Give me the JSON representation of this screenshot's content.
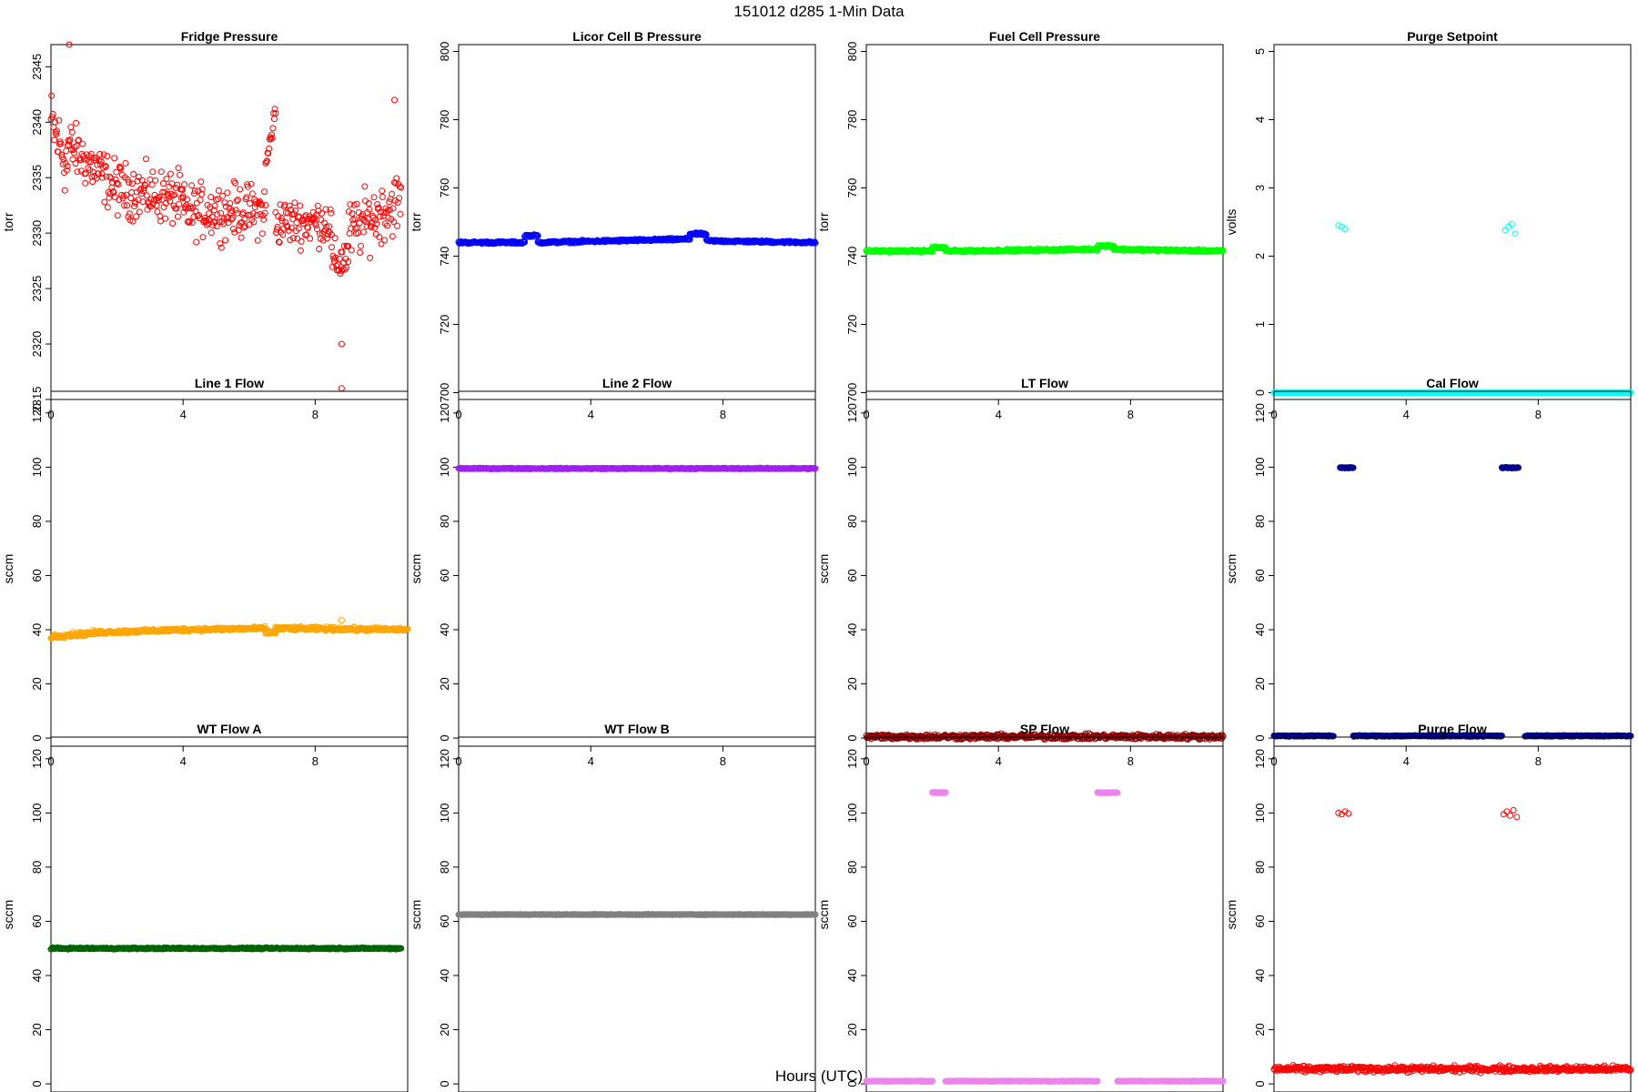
{
  "figure": {
    "title": "151012   d285   1-Min Data",
    "xlabel": "Hours (UTC)"
  },
  "chart_data": [
    {
      "type": "scatter",
      "title": "Fridge Pressure",
      "ylabel": "torr",
      "color": "#ff0000",
      "xlim": [
        0,
        10.8
      ],
      "ylim": [
        2315,
        2347
      ],
      "xticks": [
        0,
        4,
        8
      ],
      "yticks": [
        2315,
        2320,
        2325,
        2330,
        2335,
        2340,
        2345
      ],
      "segments": [
        {
          "x": [
            0.0,
            0.5
          ],
          "y": [
            2340,
            2336
          ],
          "jitter": 4.5,
          "step": 0.02
        },
        {
          "x": [
            0.5,
            2.0
          ],
          "y": [
            2338,
            2334
          ],
          "jitter": 3.5,
          "step": 0.02
        },
        {
          "x": [
            2.0,
            4.0
          ],
          "y": [
            2334,
            2333
          ],
          "jitter": 3.5,
          "step": 0.02
        },
        {
          "x": [
            4.0,
            6.5
          ],
          "y": [
            2332,
            2332
          ],
          "jitter": 3.5,
          "step": 0.02
        },
        {
          "x": [
            6.5,
            6.8
          ],
          "y": [
            2336,
            2341
          ],
          "jitter": 1.5,
          "step": 0.02
        },
        {
          "x": [
            6.8,
            8.5
          ],
          "y": [
            2331,
            2331
          ],
          "jitter": 3.0,
          "step": 0.02
        },
        {
          "x": [
            8.5,
            9.0
          ],
          "y": [
            2327,
            2328
          ],
          "jitter": 3.0,
          "step": 0.02
        },
        {
          "x": [
            9.0,
            10.6
          ],
          "y": [
            2330,
            2333
          ],
          "jitter": 4.0,
          "step": 0.02
        }
      ],
      "points": [
        {
          "x": [
            0.55
          ],
          "y": [
            2347
          ]
        },
        {
          "x": [
            8.8
          ],
          "y": [
            2316
          ]
        },
        {
          "x": [
            8.8
          ],
          "y": [
            2320
          ]
        },
        {
          "x": [
            10.4
          ],
          "y": [
            2342
          ]
        }
      ]
    },
    {
      "type": "scatter",
      "title": "Licor Cell B Pressure",
      "ylabel": "torr",
      "color": "#0000ff",
      "xlim": [
        0,
        10.8
      ],
      "ylim": [
        698,
        802
      ],
      "xticks": [
        0,
        4,
        8
      ],
      "yticks": [
        700,
        720,
        740,
        760,
        780,
        800
      ],
      "segments": [
        {
          "x": [
            0.0,
            2.0
          ],
          "y": [
            744,
            744
          ],
          "jitter": 0.5,
          "step": 0.02
        },
        {
          "x": [
            2.0,
            2.4
          ],
          "y": [
            746,
            746
          ],
          "jitter": 0.5,
          "step": 0.02
        },
        {
          "x": [
            2.4,
            7.0
          ],
          "y": [
            744,
            745
          ],
          "jitter": 0.5,
          "step": 0.02
        },
        {
          "x": [
            7.0,
            7.5
          ],
          "y": [
            746.5,
            746.5
          ],
          "jitter": 0.5,
          "step": 0.02
        },
        {
          "x": [
            7.5,
            10.8
          ],
          "y": [
            744.5,
            744
          ],
          "jitter": 0.5,
          "step": 0.02
        }
      ]
    },
    {
      "type": "scatter",
      "title": "Fuel Cell Pressure",
      "ylabel": "torr",
      "color": "#00ff00",
      "xlim": [
        0,
        10.8
      ],
      "ylim": [
        698,
        802
      ],
      "xticks": [
        0,
        4,
        8
      ],
      "yticks": [
        700,
        720,
        740,
        760,
        780,
        800
      ],
      "segments": [
        {
          "x": [
            0.0,
            2.0
          ],
          "y": [
            741.5,
            741.5
          ],
          "jitter": 0.5,
          "step": 0.02
        },
        {
          "x": [
            2.0,
            2.4
          ],
          "y": [
            742.5,
            742.5
          ],
          "jitter": 0.5,
          "step": 0.02
        },
        {
          "x": [
            2.4,
            7.0
          ],
          "y": [
            741.5,
            742
          ],
          "jitter": 0.5,
          "step": 0.02
        },
        {
          "x": [
            7.0,
            7.5
          ],
          "y": [
            743,
            743
          ],
          "jitter": 0.5,
          "step": 0.02
        },
        {
          "x": [
            7.5,
            10.8
          ],
          "y": [
            742,
            741.5
          ],
          "jitter": 0.5,
          "step": 0.02
        }
      ]
    },
    {
      "type": "scatter",
      "title": "Purge Setpoint",
      "ylabel": "volts",
      "color": "#00ffff",
      "xlim": [
        0,
        10.8
      ],
      "ylim": [
        -0.1,
        5.1
      ],
      "xticks": [
        0,
        4,
        8
      ],
      "yticks": [
        0,
        1,
        2,
        3,
        4,
        5
      ],
      "segments": [
        {
          "x": [
            0.0,
            10.8
          ],
          "y": [
            0,
            0
          ],
          "jitter": 0.0,
          "step": 0.02
        }
      ],
      "points": [
        {
          "x": [
            1.95,
            2.05,
            2.15
          ],
          "y": [
            2.45,
            2.43,
            2.4
          ]
        },
        {
          "x": [
            7.0,
            7.1,
            7.2,
            7.3
          ],
          "y": [
            2.38,
            2.43,
            2.47,
            2.33
          ]
        }
      ]
    },
    {
      "type": "scatter",
      "title": "Line 1 Flow",
      "ylabel": "sccm",
      "color": "#ffa500",
      "xlim": [
        0,
        10.8
      ],
      "ylim": [
        -3,
        128
      ],
      "xticks": [
        0,
        4,
        8
      ],
      "yticks": [
        0,
        20,
        40,
        60,
        80,
        100,
        120
      ],
      "segments": [
        {
          "x": [
            0.0,
            1.5
          ],
          "y": [
            37.5,
            39
          ],
          "jitter": 1.2,
          "step": 0.02
        },
        {
          "x": [
            1.5,
            4.0
          ],
          "y": [
            39,
            40
          ],
          "jitter": 0.9,
          "step": 0.02
        },
        {
          "x": [
            4.0,
            6.5
          ],
          "y": [
            40,
            40.5
          ],
          "jitter": 0.9,
          "step": 0.02
        },
        {
          "x": [
            6.5,
            6.8
          ],
          "y": [
            39,
            39
          ],
          "jitter": 0.9,
          "step": 0.02
        },
        {
          "x": [
            6.8,
            10.8
          ],
          "y": [
            40.5,
            40
          ],
          "jitter": 1.0,
          "step": 0.02
        }
      ],
      "points": [
        {
          "x": [
            8.8
          ],
          "y": [
            43.5
          ]
        }
      ]
    },
    {
      "type": "scatter",
      "title": "Line 2 Flow",
      "ylabel": "sccm",
      "color": "#a020f0",
      "xlim": [
        0,
        10.8
      ],
      "ylim": [
        -3,
        128
      ],
      "xticks": [
        0,
        4,
        8
      ],
      "yticks": [
        0,
        20,
        40,
        60,
        80,
        100,
        120
      ],
      "segments": [
        {
          "x": [
            0.0,
            10.8
          ],
          "y": [
            99.5,
            99.5
          ],
          "jitter": 0.3,
          "step": 0.02
        }
      ]
    },
    {
      "type": "scatter",
      "title": "LT Flow",
      "ylabel": "sccm",
      "color": "#8b0000",
      "xlim": [
        0,
        10.8
      ],
      "ylim": [
        -3,
        128
      ],
      "xticks": [
        0,
        4,
        8
      ],
      "yticks": [
        0,
        20,
        40,
        60,
        80,
        100,
        120
      ],
      "segments": [
        {
          "x": [
            0.0,
            10.8
          ],
          "y": [
            0.5,
            0.5
          ],
          "jitter": 1.4,
          "step": 0.02
        }
      ]
    },
    {
      "type": "scatter",
      "title": "Cal Flow",
      "ylabel": "sccm",
      "color": "#00008b",
      "xlim": [
        0,
        10.8
      ],
      "ylim": [
        -3,
        128
      ],
      "xticks": [
        0,
        4,
        8
      ],
      "yticks": [
        0,
        20,
        40,
        60,
        80,
        100,
        120
      ],
      "segments": [
        {
          "x": [
            0.0,
            1.8
          ],
          "y": [
            0.8,
            0.8
          ],
          "jitter": 0.3,
          "step": 0.02
        },
        {
          "x": [
            2.0,
            2.4
          ],
          "y": [
            99.8,
            99.8
          ],
          "jitter": 0.3,
          "step": 0.02
        },
        {
          "x": [
            2.4,
            6.9
          ],
          "y": [
            0.8,
            0.8
          ],
          "jitter": 0.3,
          "step": 0.02
        },
        {
          "x": [
            6.9,
            7.4
          ],
          "y": [
            99.8,
            99.8
          ],
          "jitter": 0.3,
          "step": 0.02
        },
        {
          "x": [
            7.6,
            10.8
          ],
          "y": [
            0.8,
            0.8
          ],
          "jitter": 0.3,
          "step": 0.02
        }
      ]
    },
    {
      "type": "scatter",
      "title": "WT Flow A",
      "ylabel": "sccm",
      "color": "#006400",
      "xlim": [
        0,
        10.8
      ],
      "ylim": [
        -3,
        128
      ],
      "xticks": [
        0,
        4,
        8
      ],
      "yticks": [
        0,
        20,
        40,
        60,
        80,
        100,
        120
      ],
      "segments": [
        {
          "x": [
            0.0,
            10.6
          ],
          "y": [
            50,
            50
          ],
          "jitter": 0.4,
          "step": 0.02
        }
      ]
    },
    {
      "type": "scatter",
      "title": "WT Flow B",
      "ylabel": "sccm",
      "color": "#808080",
      "xlim": [
        0,
        10.8
      ],
      "ylim": [
        -3,
        128
      ],
      "xticks": [
        0,
        4,
        8
      ],
      "yticks": [
        0,
        20,
        40,
        60,
        80,
        100,
        120
      ],
      "segments": [
        {
          "x": [
            0.0,
            10.8
          ],
          "y": [
            62.5,
            62.5
          ],
          "jitter": 0.2,
          "step": 0.02
        }
      ]
    },
    {
      "type": "scatter",
      "title": "SP Flow",
      "ylabel": "sccm",
      "color": "#ee82ee",
      "xlim": [
        0,
        10.8
      ],
      "ylim": [
        -3,
        128
      ],
      "xticks": [
        0,
        4,
        8
      ],
      "yticks": [
        0,
        20,
        40,
        60,
        80,
        100,
        120
      ],
      "segments": [
        {
          "x": [
            0.0,
            2.0
          ],
          "y": [
            1,
            1
          ],
          "jitter": 0.2,
          "step": 0.02
        },
        {
          "x": [
            2.0,
            2.4
          ],
          "y": [
            107.5,
            107.5
          ],
          "jitter": 0.2,
          "step": 0.02
        },
        {
          "x": [
            2.4,
            7.0
          ],
          "y": [
            1,
            1
          ],
          "jitter": 0.2,
          "step": 0.02
        },
        {
          "x": [
            7.0,
            7.6
          ],
          "y": [
            107.5,
            107.5
          ],
          "jitter": 0.2,
          "step": 0.02
        },
        {
          "x": [
            7.6,
            10.8
          ],
          "y": [
            1,
            1
          ],
          "jitter": 0.2,
          "step": 0.02
        }
      ]
    },
    {
      "type": "scatter",
      "title": "Purge Flow",
      "ylabel": "sccm",
      "color": "#ff0000",
      "xlim": [
        0,
        10.8
      ],
      "ylim": [
        -3,
        128
      ],
      "xticks": [
        0,
        4,
        8
      ],
      "yticks": [
        0,
        20,
        40,
        60,
        80,
        100,
        120
      ],
      "segments": [
        {
          "x": [
            0.0,
            10.8
          ],
          "y": [
            5.5,
            5.5
          ],
          "jitter": 1.6,
          "step": 0.02
        }
      ],
      "points": [
        {
          "x": [
            1.95,
            2.05,
            2.15,
            2.25
          ],
          "y": [
            100,
            99.5,
            100.5,
            99.8
          ]
        },
        {
          "x": [
            6.95,
            7.05,
            7.15,
            7.25,
            7.35
          ],
          "y": [
            99.5,
            100.5,
            99,
            101,
            98.5
          ]
        }
      ]
    }
  ]
}
